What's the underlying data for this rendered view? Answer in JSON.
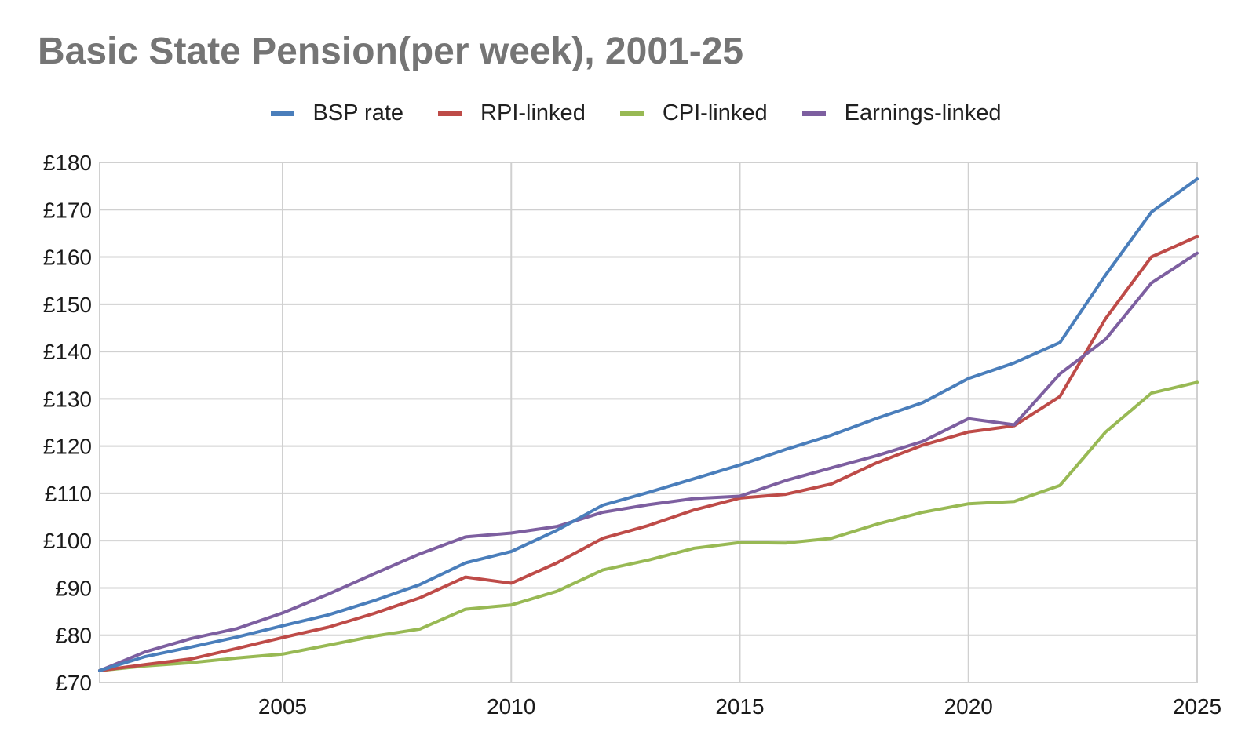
{
  "chart_data": {
    "type": "line",
    "title": "Basic State Pension(per week), 2001-25",
    "xlabel": "",
    "ylabel": "",
    "x": [
      2001,
      2002,
      2003,
      2004,
      2005,
      2006,
      2007,
      2008,
      2009,
      2010,
      2011,
      2012,
      2013,
      2014,
      2015,
      2016,
      2017,
      2018,
      2019,
      2020,
      2021,
      2022,
      2023,
      2024,
      2025
    ],
    "xlim": [
      2001,
      2025
    ],
    "ylim": [
      70,
      180
    ],
    "x_ticks": [
      2005,
      2010,
      2015,
      2020,
      2025
    ],
    "y_ticks": [
      70,
      80,
      90,
      100,
      110,
      120,
      130,
      140,
      150,
      160,
      170,
      180
    ],
    "y_tick_labels": [
      "£70",
      "£80",
      "£90",
      "£100",
      "£110",
      "£120",
      "£130",
      "£140",
      "£150",
      "£160",
      "£170",
      "£180"
    ],
    "x_tick_labels": [
      "2005",
      "2010",
      "2015",
      "2020",
      "2025"
    ],
    "grid": true,
    "legend_position": "top",
    "series": [
      {
        "name": "BSP rate",
        "color": "#4a7ebb",
        "values": [
          72.5,
          75.5,
          77.5,
          79.6,
          82.0,
          84.3,
          87.3,
          90.7,
          95.3,
          97.7,
          102.2,
          107.5,
          110.2,
          113.1,
          116.0,
          119.3,
          122.3,
          125.9,
          129.2,
          134.3,
          137.6,
          141.9,
          156.2,
          169.5,
          176.5
        ]
      },
      {
        "name": "RPI-linked",
        "color": "#be4b48",
        "values": [
          72.5,
          73.8,
          75.0,
          77.2,
          79.5,
          81.7,
          84.6,
          87.9,
          92.3,
          91.0,
          95.3,
          100.5,
          103.2,
          106.5,
          109.0,
          109.8,
          112.0,
          116.5,
          120.2,
          123.0,
          124.3,
          130.5,
          147.0,
          160.0,
          164.3
        ]
      },
      {
        "name": "CPI-linked",
        "color": "#98b954",
        "values": [
          72.5,
          73.5,
          74.2,
          75.2,
          76.0,
          77.9,
          79.8,
          81.3,
          85.5,
          86.4,
          89.3,
          93.8,
          95.9,
          98.4,
          99.6,
          99.5,
          100.5,
          103.5,
          106.0,
          107.8,
          108.3,
          111.7,
          123.0,
          131.2,
          133.5
        ]
      },
      {
        "name": "Earnings-linked",
        "color": "#7d5fa0",
        "values": [
          72.5,
          76.5,
          79.3,
          81.4,
          84.7,
          88.7,
          93.0,
          97.2,
          100.8,
          101.6,
          103.0,
          106.0,
          107.6,
          108.9,
          109.4,
          112.7,
          115.4,
          118.0,
          121.0,
          125.8,
          124.5,
          135.3,
          142.6,
          154.5,
          160.8
        ]
      }
    ]
  }
}
